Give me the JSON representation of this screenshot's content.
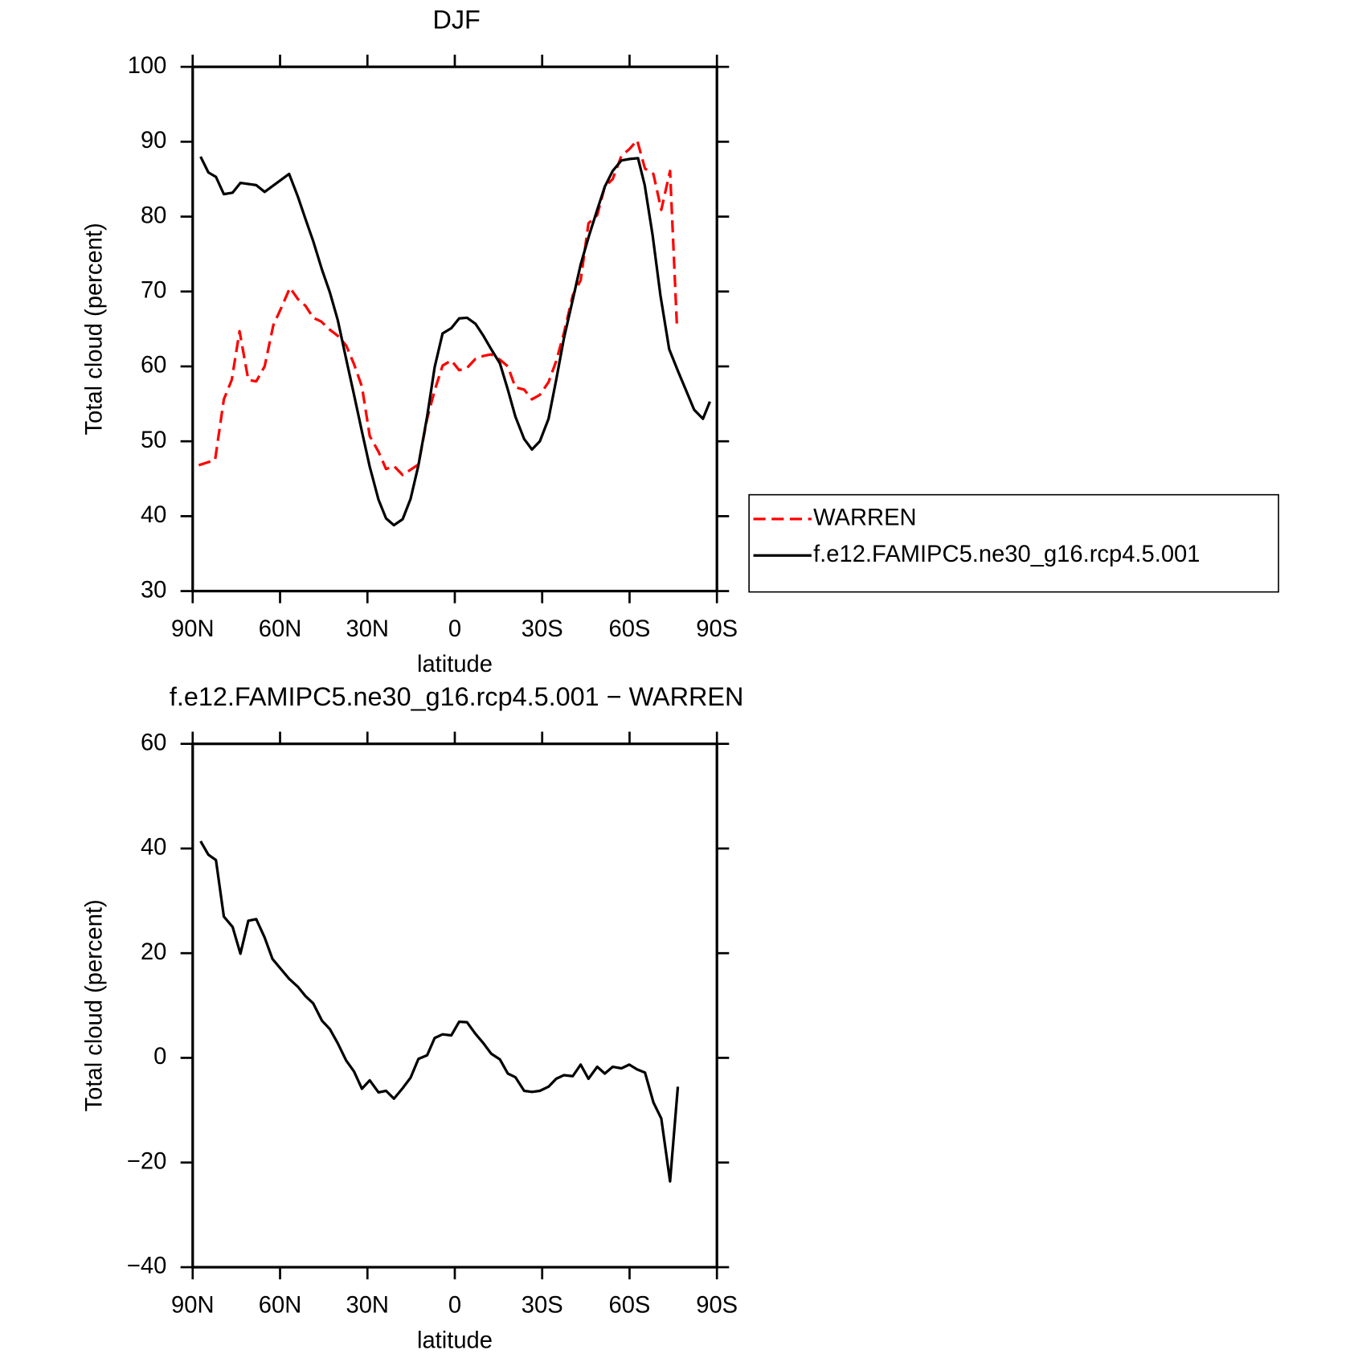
{
  "chart_data": [
    {
      "type": "line",
      "title": "DJF",
      "xlabel": "latitude",
      "ylabel": "Total cloud (percent)",
      "xlim": [
        90,
        -90
      ],
      "xticks": [
        {
          "value": 90,
          "label": "90N"
        },
        {
          "value": 60,
          "label": "60N"
        },
        {
          "value": 30,
          "label": "30N"
        },
        0,
        {
          "value": -30,
          "label": "30S"
        },
        {
          "value": -60,
          "label": "60S"
        },
        {
          "value": -90,
          "label": "90S"
        }
      ],
      "ylim": [
        30,
        100
      ],
      "yticks": [
        30,
        40,
        50,
        60,
        70,
        80,
        90,
        100
      ],
      "legend": "right",
      "series": [
        {
          "name": "WARREN",
          "color": "#ff0000",
          "dash": "dashed",
          "x": [
            87.9,
            82.3,
            79.3,
            76.6,
            73.9,
            70.9,
            68.2,
            65.3,
            62.3,
            59.6,
            56.6,
            53.9,
            51.3,
            48.6,
            45.9,
            42.9,
            40.2,
            37.3,
            34.6,
            31.9,
            29.2,
            26.2,
            23.6,
            20.9,
            17.9,
            15.2,
            12.5,
            9.5,
            6.9,
            4.2,
            1.2,
            -1.5,
            -4.2,
            -7.1,
            -9.8,
            -12.5,
            -15.5,
            -18.2,
            -20.8,
            -23.8,
            -26.5,
            -29.2,
            -32.2,
            -34.8,
            -37.5,
            -40.5,
            -43.2,
            -45.9,
            -48.9,
            -51.5,
            -54.2,
            -57.2,
            -59.9,
            -62.6,
            -65.3,
            -68.2,
            -70.9,
            -73.9,
            -76.3
          ],
          "values": [
            46.8,
            47.5,
            55.6,
            58.2,
            64.7,
            58.2,
            58,
            60,
            65.5,
            67.8,
            70.5,
            69,
            68.1,
            66.5,
            66,
            64.9,
            64.1,
            62.8,
            60.3,
            57.3,
            50.7,
            48.6,
            46.3,
            46.7,
            45.5,
            46.2,
            46.9,
            53,
            56.8,
            60.1,
            60.8,
            59.5,
            59.8,
            61,
            61.4,
            61.6,
            60.9,
            60,
            57.2,
            56.9,
            55.6,
            56.2,
            57.9,
            60.7,
            64.5,
            69.5,
            71.5,
            79.1,
            80.2,
            84,
            85,
            88.1,
            89,
            90.2,
            86.4,
            85.7,
            80.9,
            86.1,
            65.2
          ]
        },
        {
          "name": "f.e12.FAMIPC5.ne30_g16.rcp4.5.001",
          "color": "#000000",
          "dash": "solid",
          "x": [
            87.3,
            84.6,
            82,
            79.3,
            76.3,
            73.6,
            68.2,
            65.3,
            56.9,
            53.9,
            51.3,
            48.6,
            45.6,
            42.9,
            40.2,
            37.3,
            34.6,
            31.9,
            29.2,
            26.2,
            23.6,
            20.9,
            17.9,
            15.2,
            12.5,
            9.5,
            6.9,
            4.2,
            1.2,
            -1.5,
            -4.2,
            -7.1,
            -9.8,
            -12.5,
            -15.5,
            -18.2,
            -20.8,
            -23.8,
            -26.5,
            -29.2,
            -32.2,
            -34.8,
            -37.5,
            -40.5,
            -43.2,
            -46.2,
            -48.9,
            -51.5,
            -54.2,
            -57.2,
            -60.2,
            -62.9,
            -65.2,
            -67.9,
            -70.6,
            -73.6,
            -76.6,
            -79.5,
            -82.2,
            -85.2,
            -87.6
          ],
          "values": [
            88,
            85.9,
            85.3,
            83,
            83.2,
            84.5,
            84.2,
            83.3,
            85.7,
            82.7,
            79.7,
            76.7,
            72.9,
            69.9,
            66.2,
            61,
            56.2,
            51.3,
            46.6,
            42.2,
            39.7,
            38.8,
            39.6,
            42.3,
            46.8,
            53.3,
            59.9,
            64.4,
            65.1,
            66.4,
            66.5,
            65.7,
            64.1,
            62.3,
            60.4,
            56.9,
            53.3,
            50.3,
            48.9,
            50,
            53,
            58.2,
            63.8,
            68.9,
            73.6,
            77.6,
            80.9,
            84,
            86.1,
            87.5,
            87.7,
            87.8,
            84.2,
            77.6,
            69.5,
            62.3,
            59.4,
            56.7,
            54.2,
            53,
            55.3
          ]
        }
      ]
    },
    {
      "type": "line",
      "title": "f.e12.FAMIPC5.ne30_g16.rcp4.5.001 − WARREN",
      "xlabel": "latitude",
      "ylabel": "Total cloud (percent)",
      "xlim": [
        90,
        -90
      ],
      "xticks": [
        {
          "value": 90,
          "label": "90N"
        },
        {
          "value": 60,
          "label": "60N"
        },
        {
          "value": 30,
          "label": "30N"
        },
        0,
        {
          "value": -30,
          "label": "30S"
        },
        {
          "value": -60,
          "label": "60S"
        },
        {
          "value": -90,
          "label": "90S"
        }
      ],
      "ylim": [
        -40,
        60
      ],
      "yticks": [
        {
          "value": -40,
          "label": "−40"
        },
        {
          "value": -20,
          "label": "−20"
        },
        0,
        20,
        40,
        60
      ],
      "series": [
        {
          "color": "#000000",
          "dash": "solid",
          "x": [
            87.3,
            84.6,
            82,
            79.3,
            76.3,
            73.6,
            70.9,
            68.2,
            65.3,
            62.6,
            59.6,
            56.9,
            53.9,
            51.3,
            48.6,
            45.6,
            42.9,
            40.2,
            37.3,
            34.6,
            31.9,
            29.2,
            26.2,
            23.6,
            20.9,
            17.9,
            15.2,
            12.5,
            9.5,
            6.9,
            4.2,
            1.2,
            -1.5,
            -4.2,
            -7.1,
            -9.8,
            -12.5,
            -15.5,
            -18.2,
            -20.8,
            -23.8,
            -26.5,
            -29.2,
            -32.2,
            -34.8,
            -37.5,
            -40.5,
            -43.2,
            -45.9,
            -48.9,
            -51.5,
            -54.2,
            -57.2,
            -59.9,
            -62.6,
            -65.3,
            -68.2,
            -70.9,
            -73.9,
            -76.6
          ],
          "values": [
            41.4,
            38.8,
            37.8,
            27,
            25,
            19.9,
            26.2,
            26.5,
            23,
            18.9,
            16.9,
            15.1,
            13.6,
            11.8,
            10.4,
            7.1,
            5.5,
            2.8,
            -0.5,
            -2.6,
            -5.9,
            -4.3,
            -6.6,
            -6.3,
            -7.8,
            -5.8,
            -3.8,
            -0.2,
            0.5,
            3.8,
            4.5,
            4.3,
            6.9,
            6.8,
            4.6,
            2.8,
            0.8,
            -0.3,
            -3,
            -3.7,
            -6.3,
            -6.5,
            -6.3,
            -5.5,
            -4,
            -3.3,
            -3.5,
            -1.3,
            -4,
            -1.7,
            -3,
            -1.7,
            -2,
            -1.3,
            -2.2,
            -2.8,
            -8.5,
            -11.6,
            -23.6,
            -5.5
          ]
        }
      ]
    }
  ]
}
